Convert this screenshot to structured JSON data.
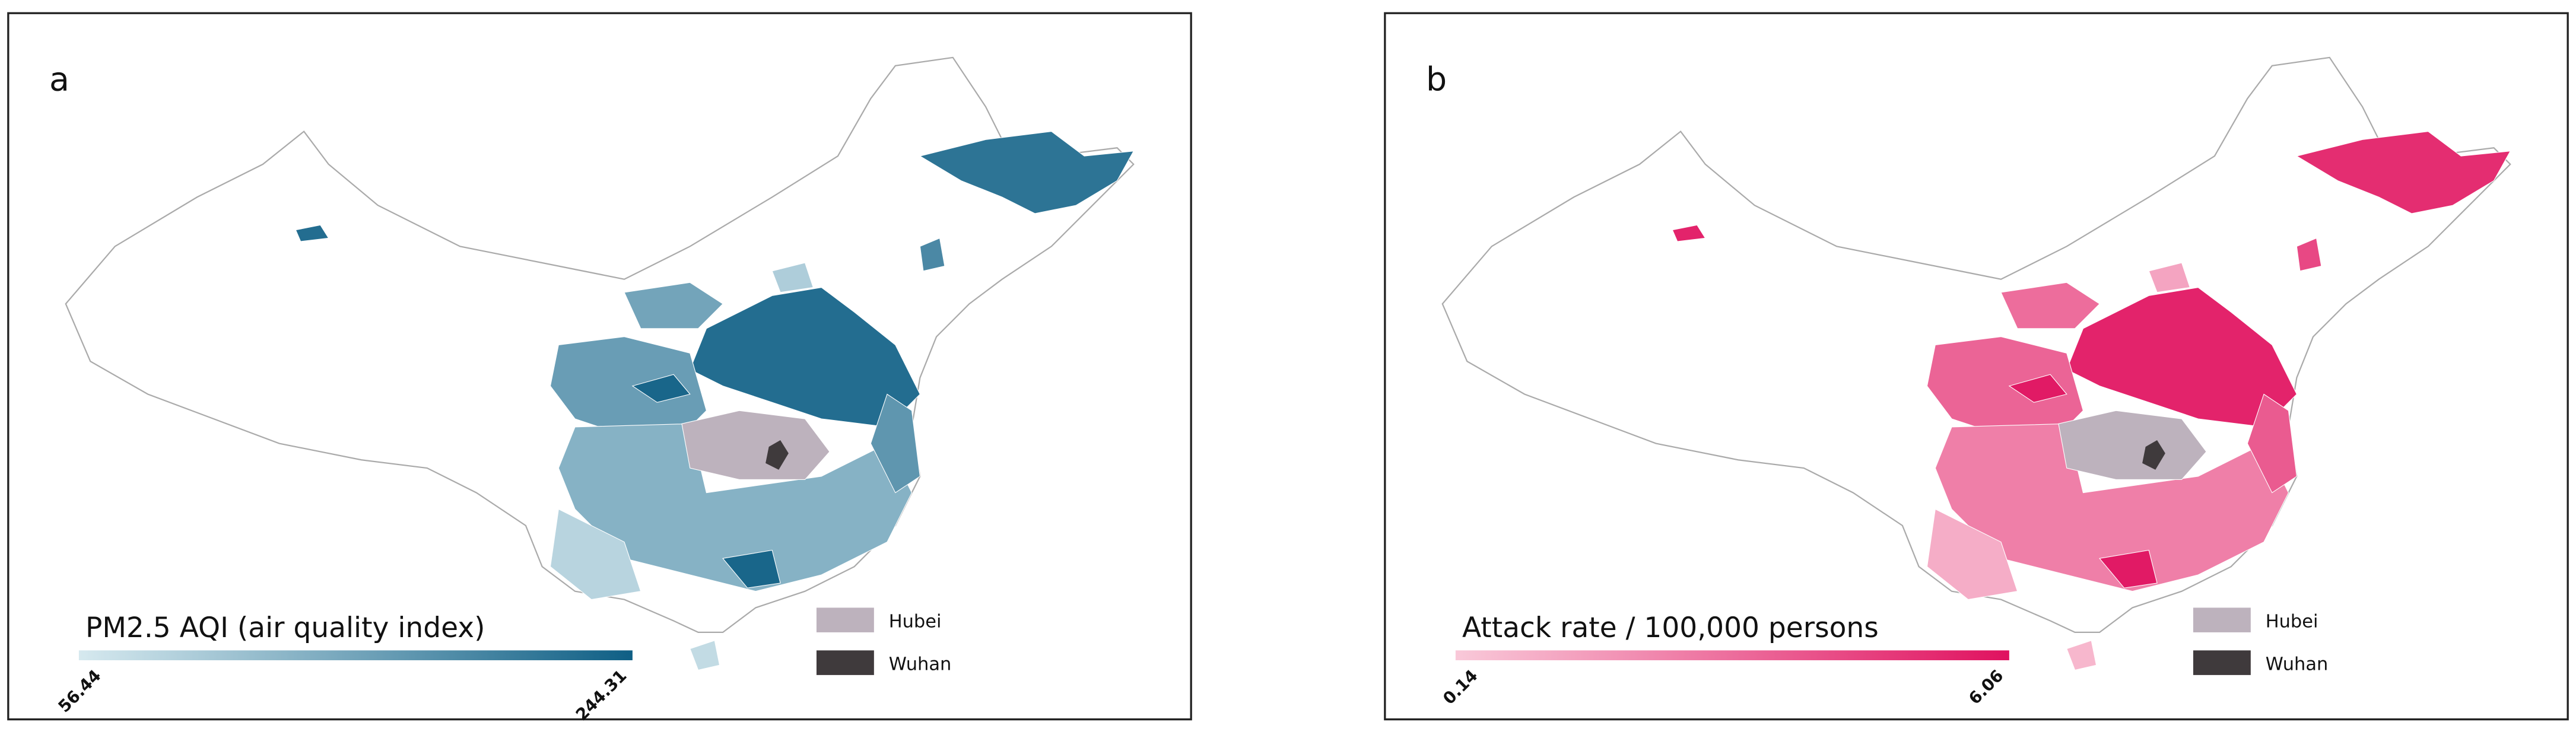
{
  "panels": [
    {
      "label": "a",
      "legend": {
        "title": "PM2.5 AQI (air quality index)",
        "min": 56.44,
        "max": 244.31,
        "color_low": "#d6e9ef",
        "color_high": "#0f5f85"
      },
      "key": [
        {
          "label": "Hubei",
          "color": "#bdb2bd"
        },
        {
          "label": "Wuhan",
          "color": "#3f3a3c"
        }
      ]
    },
    {
      "label": "b",
      "legend": {
        "title": "Attack rate / 100,000 persons",
        "min": 0.14,
        "max": 6.06,
        "color_low": "#f9c9d9",
        "color_high": "#e0115f"
      },
      "key": [
        {
          "label": "Hubei",
          "color": "#bdb2bd"
        },
        {
          "label": "Wuhan",
          "color": "#3f3a3c"
        }
      ]
    }
  ]
}
